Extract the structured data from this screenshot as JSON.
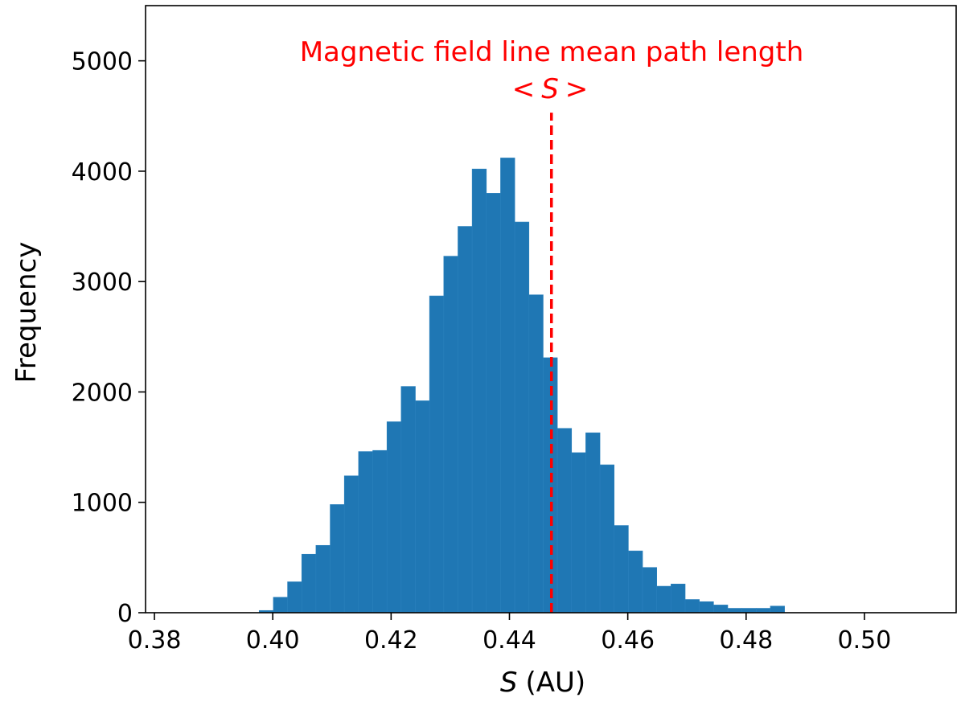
{
  "chart_data": {
    "type": "bar",
    "xlabel_var": "S",
    "xlabel_unit": "(AU)",
    "ylabel": "Frequency",
    "xlim": [
      0.3785,
      0.5155
    ],
    "ylim": [
      0,
      5500
    ],
    "xticks": [
      0.38,
      0.4,
      0.42,
      0.44,
      0.46,
      0.48,
      0.5
    ],
    "xtick_labels": [
      "0.38",
      "0.40",
      "0.42",
      "0.44",
      "0.46",
      "0.48",
      "0.50"
    ],
    "yticks": [
      0,
      1000,
      2000,
      3000,
      4000,
      5000
    ],
    "ytick_labels": [
      "0",
      "1000",
      "2000",
      "3000",
      "4000",
      "5000"
    ],
    "bin_start": 0.3977,
    "bin_width": 0.0024,
    "values": [
      20,
      140,
      280,
      530,
      610,
      980,
      1240,
      1460,
      1470,
      1730,
      2050,
      1920,
      2870,
      3230,
      3500,
      4020,
      3800,
      4120,
      3540,
      2880,
      2310,
      1670,
      1450,
      1630,
      1340,
      790,
      560,
      410,
      240,
      260,
      120,
      100,
      70,
      40,
      40,
      40,
      60
    ],
    "mean_line": {
      "x": 0.4471,
      "y_top": 4530,
      "color": "#ff0000",
      "style": "dashed"
    },
    "annotation": {
      "line1": "Magnetic field line mean path length",
      "line2_left": "<",
      "line2_var": "S",
      "line2_right": ">",
      "color": "#ff0000"
    },
    "bar_color": "#1f77b4",
    "grid": false
  }
}
